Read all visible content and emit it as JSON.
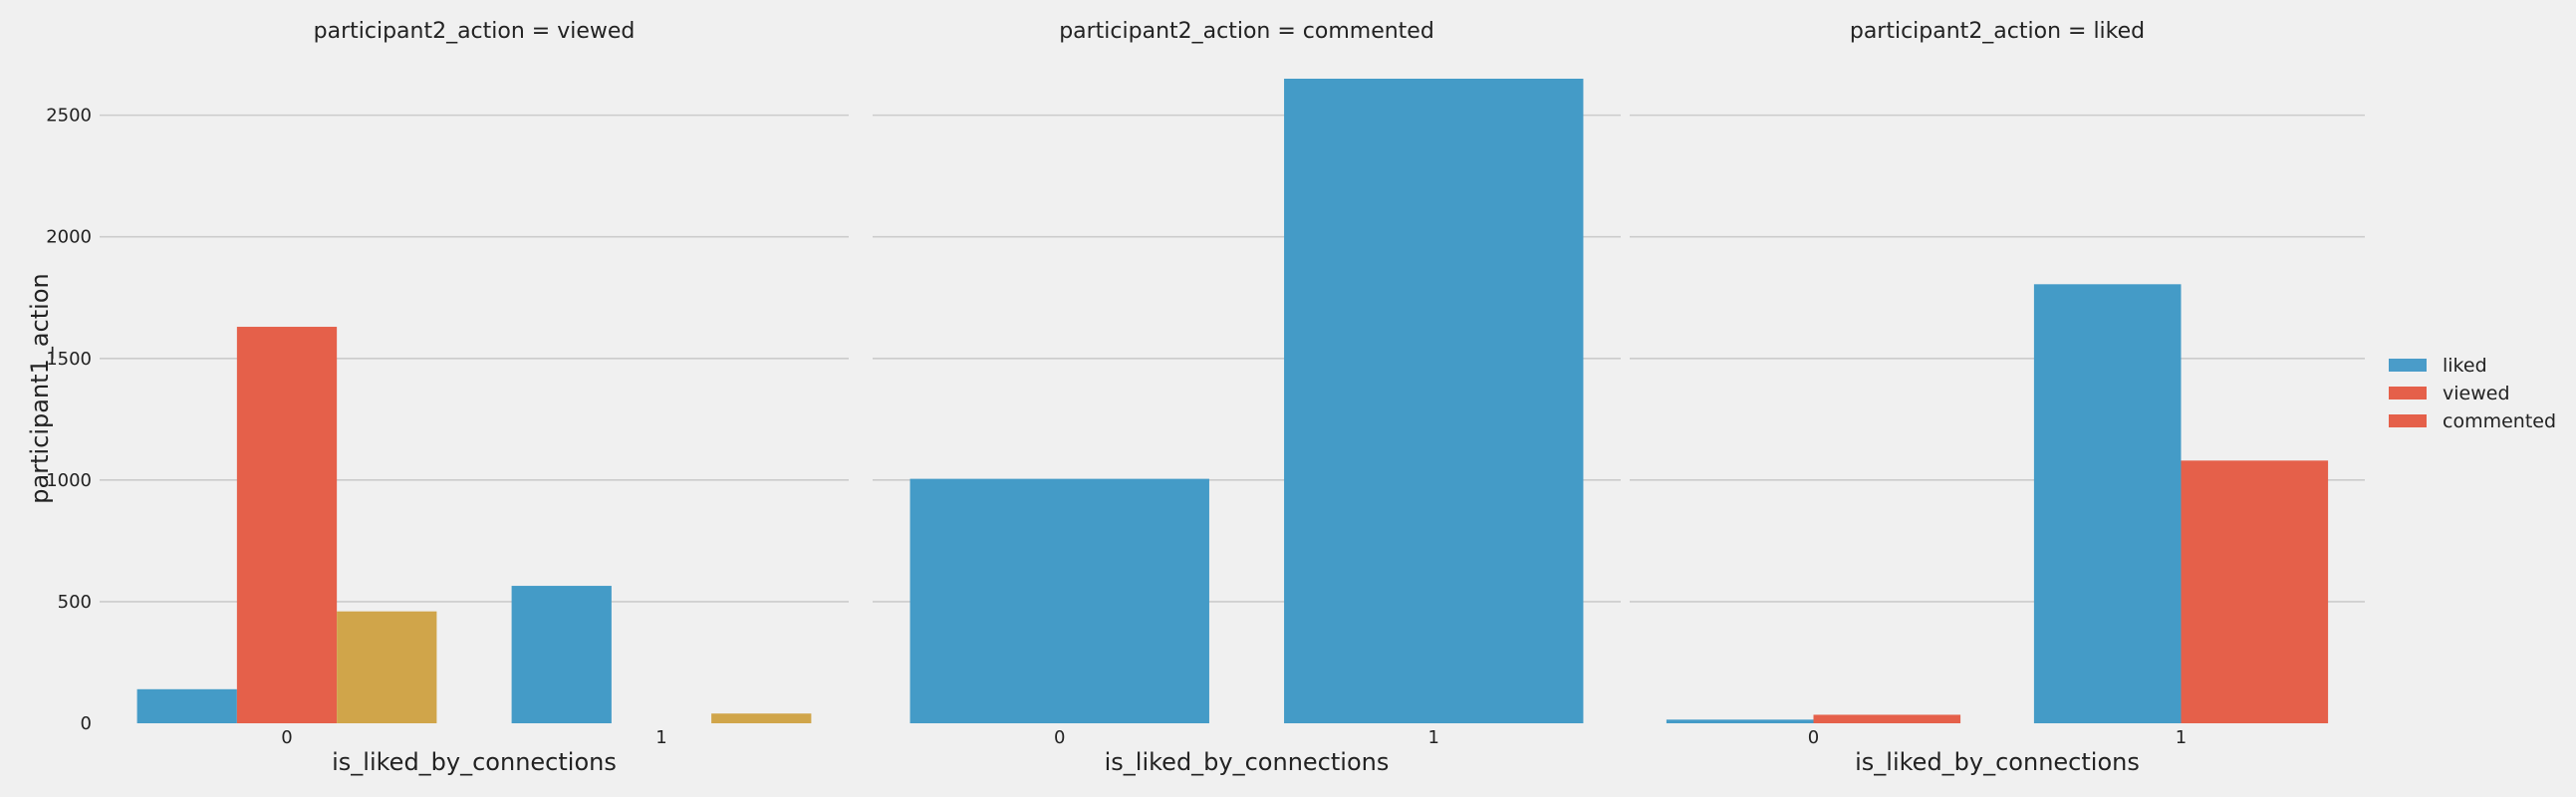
{
  "chart_data": [
    {
      "type": "bar",
      "title": "participant2_action = viewed",
      "xlabel": "is_liked_by_connections",
      "ylabel": "participant1_action",
      "categories": [
        "0",
        "1"
      ],
      "series": [
        {
          "name": "liked",
          "values": [
            140,
            565
          ]
        },
        {
          "name": "viewed",
          "values": [
            1630,
            0
          ]
        },
        {
          "name": "commented",
          "values": [
            460,
            40
          ]
        }
      ],
      "ylim": [
        0,
        2650
      ],
      "yticks": [
        "0",
        "500",
        "1000",
        "1500",
        "2000",
        "2500"
      ],
      "grid": true
    },
    {
      "type": "bar",
      "title": "participant2_action = commented",
      "xlabel": "is_liked_by_connections",
      "ylabel": "",
      "categories": [
        "0",
        "1"
      ],
      "series": [
        {
          "name": "liked",
          "values": [
            1005,
            2650
          ]
        }
      ],
      "ylim": [
        0,
        2650
      ],
      "grid": true
    },
    {
      "type": "bar",
      "title": "participant2_action = liked",
      "xlabel": "is_liked_by_connections",
      "ylabel": "",
      "categories": [
        "0",
        "1"
      ],
      "series": [
        {
          "name": "liked",
          "values": [
            15,
            1805
          ]
        },
        {
          "name": "viewed",
          "values": [
            35,
            1080
          ]
        }
      ],
      "ylim": [
        0,
        2650
      ],
      "grid": true
    }
  ],
  "legend": {
    "placement": "center-right",
    "entries": [
      {
        "label": "liked",
        "color": "#4a9cc9"
      },
      {
        "label": "viewed",
        "color": "#e5604a"
      },
      {
        "label": "commented",
        "color": "#e5604a"
      }
    ]
  },
  "colors": {
    "liked": "#449bc7",
    "viewed": "#e5604a",
    "commented": "#d0a54a",
    "background": "#f0f0f0",
    "grid": "#cbcbcb"
  }
}
